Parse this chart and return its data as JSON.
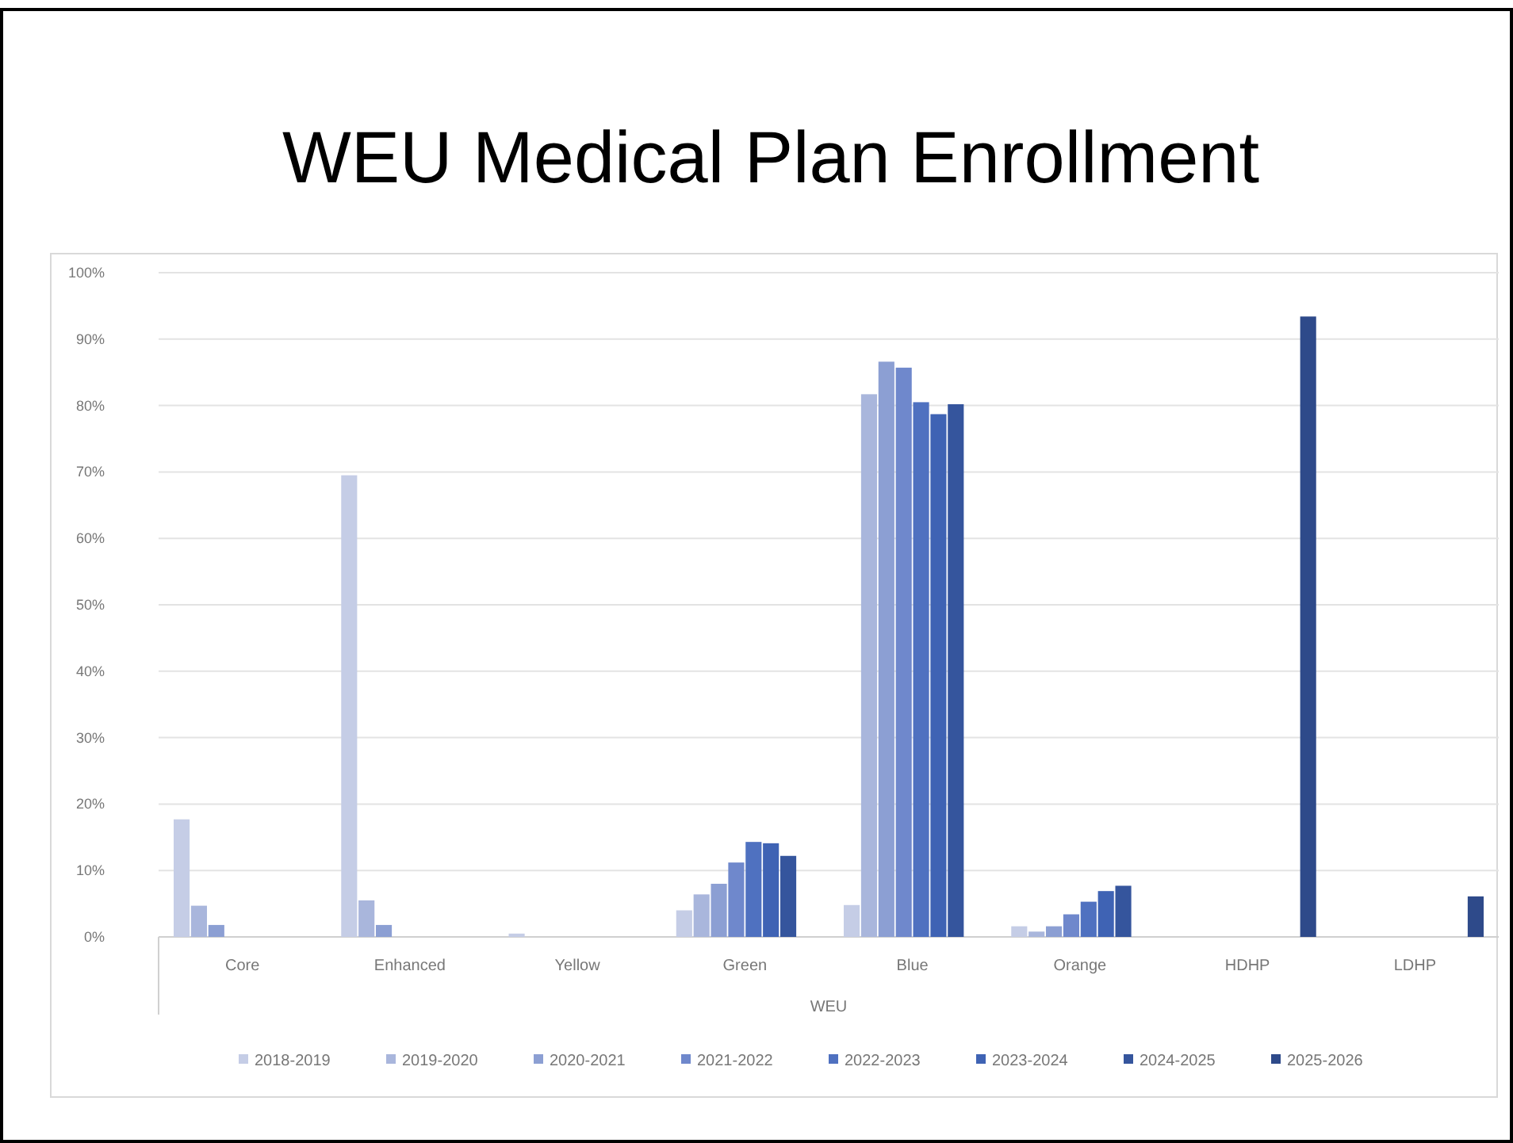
{
  "chart_data": {
    "type": "bar",
    "title": "WEU Medical Plan Enrollment",
    "xlabel": "WEU",
    "categories": [
      "Core",
      "Enhanced",
      "Yellow",
      "Green",
      "Blue",
      "Orange",
      "HDHP",
      "LDHP"
    ],
    "series": [
      {
        "name": "2018-2019",
        "color": "#c5cde6",
        "values": [
          17.7,
          69.5,
          0.5,
          4.0,
          4.8,
          1.6,
          null,
          null
        ]
      },
      {
        "name": "2019-2020",
        "color": "#a9b6dc",
        "values": [
          4.7,
          5.5,
          null,
          6.4,
          81.7,
          0.8,
          null,
          null
        ]
      },
      {
        "name": "2020-2021",
        "color": "#8c9fd3",
        "values": [
          1.8,
          1.8,
          null,
          8.0,
          86.6,
          1.6,
          null,
          null
        ]
      },
      {
        "name": "2021-2022",
        "color": "#6f88cc",
        "values": [
          null,
          null,
          null,
          11.2,
          85.7,
          3.4,
          null,
          null
        ]
      },
      {
        "name": "2022-2023",
        "color": "#4f71c0",
        "values": [
          null,
          null,
          null,
          14.3,
          80.5,
          5.3,
          null,
          null
        ]
      },
      {
        "name": "2023-2024",
        "color": "#3f63b4",
        "values": [
          null,
          null,
          null,
          14.1,
          78.7,
          6.9,
          null,
          null
        ]
      },
      {
        "name": "2024-2025",
        "color": "#35559d",
        "values": [
          null,
          null,
          null,
          12.2,
          80.2,
          7.7,
          null,
          null
        ]
      },
      {
        "name": "2025-2026",
        "color": "#2e4a8a",
        "values": [
          null,
          null,
          null,
          null,
          null,
          null,
          93.4,
          6.1
        ]
      }
    ],
    "ylim": [
      0,
      100
    ],
    "yticks": [
      {
        "value": 0,
        "label": "0%"
      },
      {
        "value": 10,
        "label": "10%"
      },
      {
        "value": 20,
        "label": "20%"
      },
      {
        "value": 30,
        "label": "30%"
      },
      {
        "value": 40,
        "label": "40%"
      },
      {
        "value": 50,
        "label": "50%"
      },
      {
        "value": 60,
        "label": "60%"
      },
      {
        "value": 70,
        "label": "70%"
      },
      {
        "value": 80,
        "label": "80%"
      },
      {
        "value": 90,
        "label": "90%"
      },
      {
        "value": 100,
        "label": "100%"
      }
    ],
    "grid": "y",
    "legend": "bottom"
  }
}
